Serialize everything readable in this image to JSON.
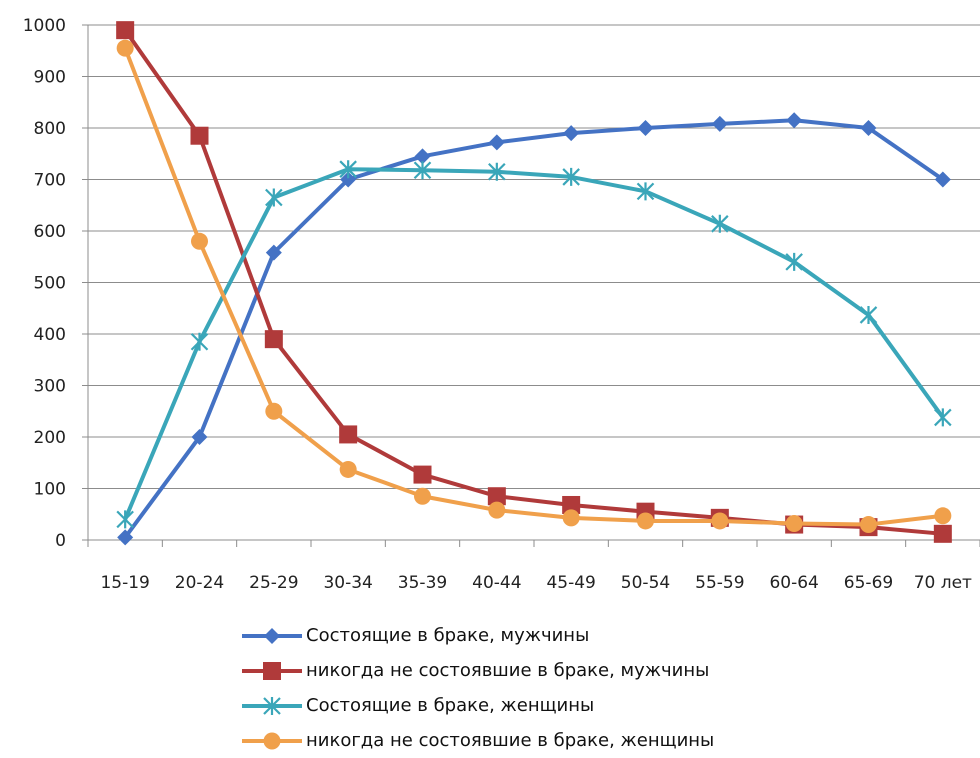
{
  "chart_data": {
    "type": "line",
    "title": "",
    "xlabel": "",
    "ylabel": "",
    "categories": [
      "15-19",
      "20-24",
      "25-29",
      "30-34",
      "35-39",
      "40-44",
      "45-49",
      "50-54",
      "55-59",
      "60-64",
      "65-69",
      "70 лет"
    ],
    "ylim": [
      0,
      1000
    ],
    "yticks": [
      0,
      100,
      200,
      300,
      400,
      500,
      600,
      700,
      800,
      900,
      1000
    ],
    "grid": true,
    "legend_position": "bottom",
    "series": [
      {
        "name": "Состоящие в браке, мужчины",
        "color": "#4472C4",
        "marker": "diamond",
        "values": [
          5,
          200,
          558,
          700,
          745,
          772,
          790,
          800,
          808,
          815,
          800,
          700
        ]
      },
      {
        "name": "никогда не состоявшие в браке, мужчины",
        "color": "#B03A3A",
        "marker": "square",
        "values": [
          990,
          785,
          390,
          205,
          127,
          85,
          68,
          55,
          43,
          30,
          25,
          12
        ]
      },
      {
        "name": "Состоящие в браке, женщины",
        "color": "#3AA6B9",
        "marker": "star",
        "values": [
          40,
          385,
          665,
          720,
          718,
          715,
          705,
          677,
          614,
          540,
          437,
          238
        ]
      },
      {
        "name": "никогда не состоявшие в браке, женщины",
        "color": "#F0A04B",
        "marker": "circle",
        "values": [
          955,
          580,
          250,
          137,
          85,
          58,
          43,
          37,
          37,
          32,
          30,
          47
        ]
      }
    ]
  }
}
